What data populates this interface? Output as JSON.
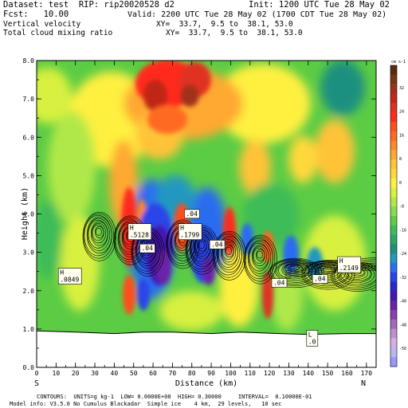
{
  "header": {
    "dataset": "Dataset: test  RIP: rip20020528 d2",
    "init": "Init: 1200 UTC Tue 28 May 02",
    "fcst": "Fcst:   10.00",
    "valid": "Valid: 2200 UTC Tue 28 May 02 (1700 CDT Tue 28 May 02)",
    "field1": "Vertical velocity",
    "xy1": "XY=  33.7,  9.5 to  38.1, 53.0",
    "field2": "Total cloud mixing ratio",
    "xy2": "XY=  33.7,  9.5 to  38.1, 53.0"
  },
  "footer": {
    "contours": "CONTOURS:  UNITS=g kg-1  LOW= 0.0000E+00  HIGH= 0.30000     INTERVAL=  0.10000E-01",
    "model": "Model info: V3.5.0 No Cumulus Blackadar  Simple ice    4 km,  29 levels,   10 sec"
  },
  "chart_data": {
    "type": "heatmap",
    "xlabel": "Distance (km)",
    "ylabel": "Height (km)",
    "xlim": [
      0,
      175
    ],
    "ylim": [
      0,
      8
    ],
    "x_ticks": [
      "0",
      "10",
      "20",
      "30",
      "40",
      "50",
      "60",
      "70",
      "80",
      "90",
      "100",
      "110",
      "120",
      "130",
      "140",
      "150",
      "160",
      "170"
    ],
    "y_ticks": [
      "0.0",
      "1.0",
      "2.0",
      "3.0",
      "4.0",
      "5.0",
      "6.0",
      "7.0",
      "8.0"
    ],
    "left_end_label": "S",
    "right_end_label": "N",
    "colorbar": {
      "units": "cm s-1",
      "labels": [
        "32",
        "24",
        "16",
        "8",
        "0",
        "-8",
        "-16",
        "-24",
        "-32",
        "-40",
        "-48",
        "-56"
      ],
      "colors": [
        "#5a2a0a",
        "#7a3414",
        "#a0301a",
        "#c02818",
        "#e03020",
        "#ff2a1e",
        "#ff4d1e",
        "#ff6a20",
        "#ff8828",
        "#ffa830",
        "#ffc338",
        "#ffd83a",
        "#fff040",
        "#d8f040",
        "#b0e848",
        "#88dc48",
        "#5ccc44",
        "#3cbc58",
        "#28a868",
        "#1c9080",
        "#2098c0",
        "#2c6cf0",
        "#2a44e8",
        "#2a28c8",
        "#4418b0",
        "#6a20a8",
        "#8a40b0",
        "#a468c0",
        "#be90d0",
        "#d4b0e0",
        "#b8b8f0",
        "#9898f8"
      ]
    },
    "terrain_km": [
      [
        0,
        0.95
      ],
      [
        20,
        0.92
      ],
      [
        40,
        0.88
      ],
      [
        55,
        0.92
      ],
      [
        70,
        0.92
      ],
      [
        90,
        0.88
      ],
      [
        105,
        0.92
      ],
      [
        125,
        0.88
      ],
      [
        140,
        0.86
      ],
      [
        160,
        0.88
      ],
      [
        175,
        0.88
      ]
    ],
    "cloud_cells": [
      {
        "x": 32,
        "y": 3.55
      },
      {
        "x": 48,
        "y": 3.45
      },
      {
        "x": 57,
        "y": 3.15
      },
      {
        "x": 75,
        "y": 3.35
      },
      {
        "x": 85,
        "y": 3.2
      },
      {
        "x": 99,
        "y": 3.05
      },
      {
        "x": 115,
        "y": 2.95
      },
      {
        "x": 133,
        "y": 2.6
      },
      {
        "x": 150,
        "y": 2.55
      },
      {
        "x": 165,
        "y": 2.5
      }
    ],
    "annotations": [
      {
        "text": "H",
        "sub": ".0849",
        "x": 12,
        "y": 2.42
      },
      {
        "text": "H",
        "sub": ".5128",
        "x": 48,
        "y": 3.58
      },
      {
        "text": "H",
        "sub": ".1799",
        "x": 74,
        "y": 3.58
      },
      {
        "text": ".04",
        "x": 77,
        "y": 3.95
      },
      {
        "text": ".04",
        "x": 54,
        "y": 3.05
      },
      {
        "text": ".04",
        "x": 90,
        "y": 3.15
      },
      {
        "text": ".04",
        "x": 122,
        "y": 2.15
      },
      {
        "text": ".04",
        "x": 143,
        "y": 2.25
      },
      {
        "text": "H",
        "sub": ".2149",
        "x": 156,
        "y": 2.72
      },
      {
        "text": "L",
        "sub": ".0",
        "x": 140,
        "y": 0.8
      }
    ]
  }
}
